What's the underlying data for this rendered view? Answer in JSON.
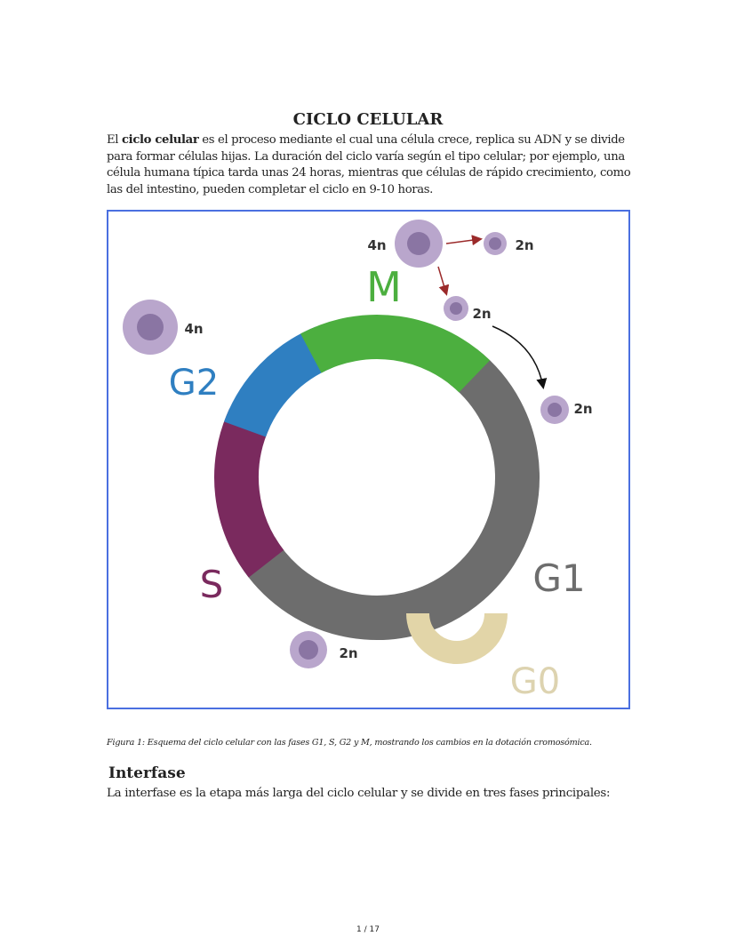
{
  "title": "CICLO CELULAR",
  "intro": {
    "before_bold": "El ",
    "bold": "ciclo celular",
    "after_bold": " es el proceso mediante el cual una célula crece, replica su ADN y se divide para formar células hijas. La duración del ciclo varía según el tipo celular; por ejemplo, una célula humana típica tarda unas 24 horas, mientras que células de rápido crecimiento, como las del intestino, pueden completar el ciclo en 9-10 horas."
  },
  "figure": {
    "phases": {
      "M": "M",
      "G2": "G2",
      "S": "S",
      "G1": "G1",
      "G0": "G0"
    },
    "colors": {
      "M": "#4caf3f",
      "G2": "#2f7fc1",
      "S": "#7a2a5e",
      "G1": "#6d6d6d",
      "G0": "#e2d5a8",
      "cell": "#b9a6cc",
      "nucleus": "#8a75a3",
      "border": "#4a6fe0"
    },
    "cell_labels": {
      "m_parent": "4n",
      "m_child_right": "2n",
      "m_child_down": "2n",
      "g2_cell": "4n",
      "g1_cell": "2n",
      "s_cell": "2n"
    },
    "caption": "Figura 1: Esquema del ciclo celular con las fases G1, S, G2 y M, mostrando los cambios en la dotación cromosómica."
  },
  "section": {
    "heading": "Interfase",
    "text": "La interfase es la etapa más larga del ciclo celular y se divide en tres fases principales:"
  },
  "page_number": "1 / 17"
}
